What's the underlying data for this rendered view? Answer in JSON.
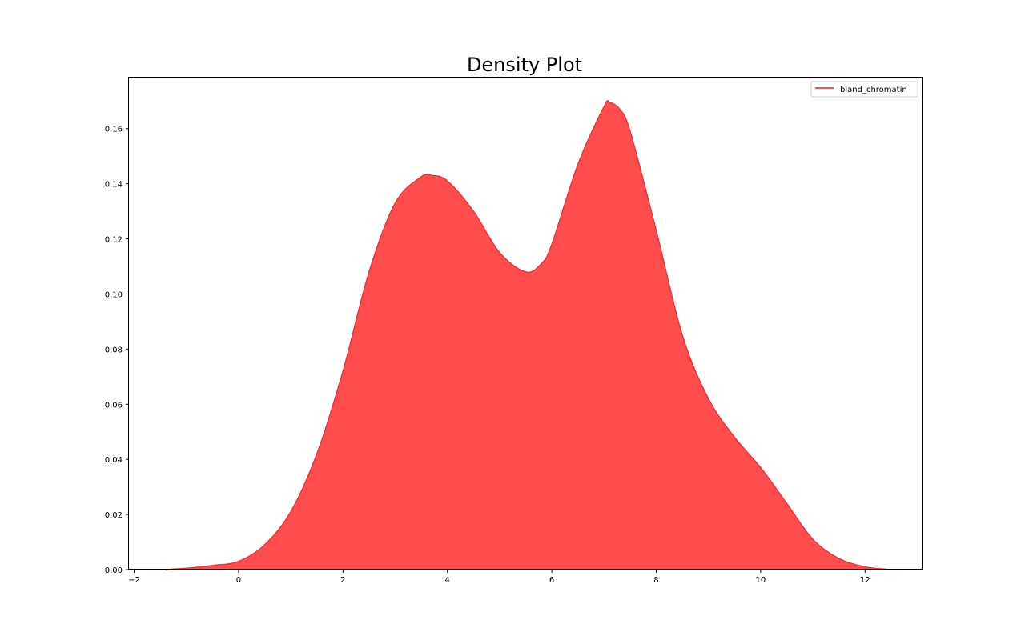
{
  "chart_data": {
    "type": "area",
    "title": "Density Plot",
    "xlabel": "",
    "ylabel": "",
    "xlim": [
      -2.1,
      13.1
    ],
    "ylim": [
      0,
      0.1785
    ],
    "xticks": [
      -2,
      0,
      2,
      4,
      6,
      8,
      10,
      12
    ],
    "yticks": [
      0.0,
      0.02,
      0.04,
      0.06,
      0.08,
      0.1,
      0.12,
      0.14,
      0.16
    ],
    "ytick_labels": [
      "0.00",
      "0.02",
      "0.04",
      "0.06",
      "0.08",
      "0.10",
      "0.12",
      "0.14",
      "0.16"
    ],
    "xtick_labels": [
      "−2",
      "0",
      "2",
      "4",
      "6",
      "8",
      "10",
      "12"
    ],
    "grid": false,
    "legend_position": "top-right",
    "colors": {
      "fill": "#ff4c4c",
      "line": "#e8353a"
    },
    "series": [
      {
        "name": "bland_chromatin",
        "x": [
          -1.4,
          -1.0,
          -0.5,
          0.0,
          0.5,
          1.0,
          1.5,
          2.0,
          2.5,
          3.0,
          3.5,
          3.7,
          4.0,
          4.5,
          5.0,
          5.5,
          5.8,
          6.0,
          6.5,
          7.0,
          7.1,
          7.3,
          7.5,
          8.0,
          8.5,
          9.0,
          9.5,
          10.0,
          10.5,
          11.0,
          11.5,
          12.0,
          12.4
        ],
        "y": [
          0.0,
          0.0005,
          0.0015,
          0.003,
          0.009,
          0.021,
          0.042,
          0.072,
          0.108,
          0.133,
          0.1425,
          0.143,
          0.141,
          0.13,
          0.115,
          0.108,
          0.111,
          0.118,
          0.147,
          0.168,
          0.1695,
          0.167,
          0.159,
          0.123,
          0.085,
          0.062,
          0.048,
          0.037,
          0.024,
          0.011,
          0.004,
          0.001,
          0.0002
        ]
      }
    ]
  }
}
